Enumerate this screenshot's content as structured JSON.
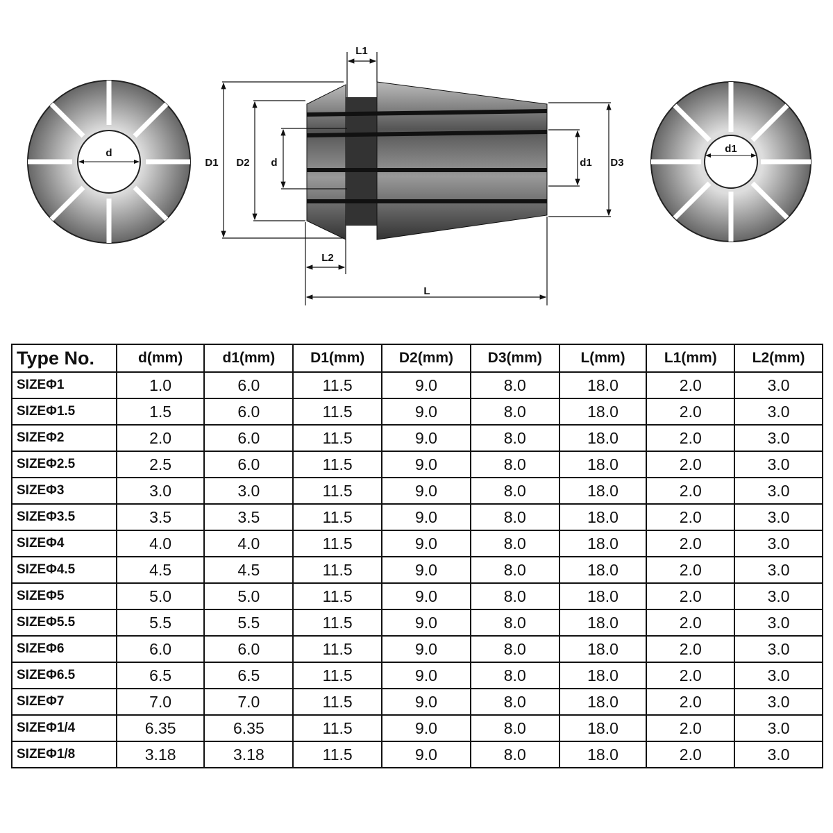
{
  "diagram": {
    "labels": {
      "d": "d",
      "d1": "d1",
      "D1": "D1",
      "D2": "D2",
      "D3": "D3",
      "L": "L",
      "L1": "L1",
      "L2": "L2",
      "d_center": "d",
      "d1_center": "d1"
    }
  },
  "table": {
    "headers": [
      "Type No.",
      "d(mm)",
      "d1(mm)",
      "D1(mm)",
      "D2(mm)",
      "D3(mm)",
      "L(mm)",
      "L1(mm)",
      "L2(mm)"
    ],
    "rows": [
      [
        "SIZEΦ1",
        "1.0",
        "6.0",
        "11.5",
        "9.0",
        "8.0",
        "18.0",
        "2.0",
        "3.0"
      ],
      [
        "SIZEΦ1.5",
        "1.5",
        "6.0",
        "11.5",
        "9.0",
        "8.0",
        "18.0",
        "2.0",
        "3.0"
      ],
      [
        "SIZEΦ2",
        "2.0",
        "6.0",
        "11.5",
        "9.0",
        "8.0",
        "18.0",
        "2.0",
        "3.0"
      ],
      [
        "SIZEΦ2.5",
        "2.5",
        "6.0",
        "11.5",
        "9.0",
        "8.0",
        "18.0",
        "2.0",
        "3.0"
      ],
      [
        "SIZEΦ3",
        "3.0",
        "3.0",
        "11.5",
        "9.0",
        "8.0",
        "18.0",
        "2.0",
        "3.0"
      ],
      [
        "SIZEΦ3.5",
        "3.5",
        "3.5",
        "11.5",
        "9.0",
        "8.0",
        "18.0",
        "2.0",
        "3.0"
      ],
      [
        "SIZEΦ4",
        "4.0",
        "4.0",
        "11.5",
        "9.0",
        "8.0",
        "18.0",
        "2.0",
        "3.0"
      ],
      [
        "SIZEΦ4.5",
        "4.5",
        "4.5",
        "11.5",
        "9.0",
        "8.0",
        "18.0",
        "2.0",
        "3.0"
      ],
      [
        "SIZEΦ5",
        "5.0",
        "5.0",
        "11.5",
        "9.0",
        "8.0",
        "18.0",
        "2.0",
        "3.0"
      ],
      [
        "SIZEΦ5.5",
        "5.5",
        "5.5",
        "11.5",
        "9.0",
        "8.0",
        "18.0",
        "2.0",
        "3.0"
      ],
      [
        "SIZEΦ6",
        "6.0",
        "6.0",
        "11.5",
        "9.0",
        "8.0",
        "18.0",
        "2.0",
        "3.0"
      ],
      [
        "SIZEΦ6.5",
        "6.5",
        "6.5",
        "11.5",
        "9.0",
        "8.0",
        "18.0",
        "2.0",
        "3.0"
      ],
      [
        "SIZEΦ7",
        "7.0",
        "7.0",
        "11.5",
        "9.0",
        "8.0",
        "18.0",
        "2.0",
        "3.0"
      ],
      [
        "SIZEΦ1/4",
        "6.35",
        "6.35",
        "11.5",
        "9.0",
        "8.0",
        "18.0",
        "2.0",
        "3.0"
      ],
      [
        "SIZEΦ1/8",
        "3.18",
        "3.18",
        "11.5",
        "9.0",
        "8.0",
        "18.0",
        "2.0",
        "3.0"
      ]
    ]
  }
}
